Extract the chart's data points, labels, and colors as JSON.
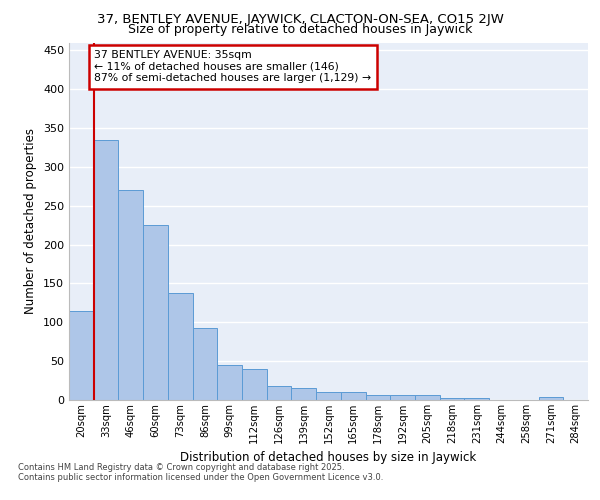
{
  "title_line1": "37, BENTLEY AVENUE, JAYWICK, CLACTON-ON-SEA, CO15 2JW",
  "title_line2": "Size of property relative to detached houses in Jaywick",
  "xlabel": "Distribution of detached houses by size in Jaywick",
  "ylabel": "Number of detached properties",
  "categories": [
    "20sqm",
    "33sqm",
    "46sqm",
    "60sqm",
    "73sqm",
    "86sqm",
    "99sqm",
    "112sqm",
    "126sqm",
    "139sqm",
    "152sqm",
    "165sqm",
    "178sqm",
    "192sqm",
    "205sqm",
    "218sqm",
    "231sqm",
    "244sqm",
    "258sqm",
    "271sqm",
    "284sqm"
  ],
  "values": [
    115,
    335,
    270,
    225,
    138,
    93,
    45,
    40,
    18,
    16,
    10,
    10,
    6,
    6,
    7,
    2,
    2,
    0,
    0,
    4,
    0
  ],
  "bar_color": "#aec6e8",
  "bar_edge_color": "#5b9bd5",
  "vline_x": 0.5,
  "vline_color": "#cc0000",
  "annotation_text": "37 BENTLEY AVENUE: 35sqm\n← 11% of detached houses are smaller (146)\n87% of semi-detached houses are larger (1,129) →",
  "annotation_box_color": "#cc0000",
  "background_color": "#e8eef8",
  "grid_color": "#ffffff",
  "ylim": [
    0,
    460
  ],
  "yticks": [
    0,
    50,
    100,
    150,
    200,
    250,
    300,
    350,
    400,
    450
  ],
  "footer_line1": "Contains HM Land Registry data © Crown copyright and database right 2025.",
  "footer_line2": "Contains public sector information licensed under the Open Government Licence v3.0."
}
